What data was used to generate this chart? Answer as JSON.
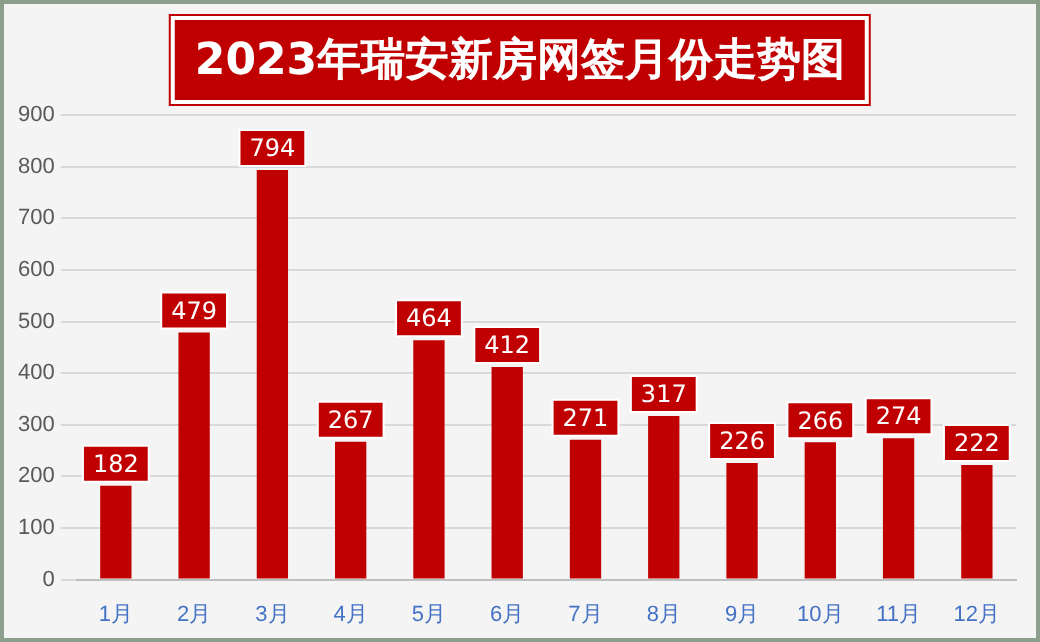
{
  "chart_data": {
    "type": "bar",
    "title": "2023年瑞安新房网签月份走势图",
    "categories": [
      "1月",
      "2月",
      "3月",
      "4月",
      "5月",
      "6月",
      "7月",
      "8月",
      "9月",
      "10月",
      "11月",
      "12月"
    ],
    "values": [
      182,
      479,
      794,
      267,
      464,
      412,
      271,
      317,
      226,
      266,
      274,
      222
    ],
    "color": "#c00000",
    "ylim": [
      0,
      900
    ],
    "yticks": [
      0,
      100,
      200,
      300,
      400,
      500,
      600,
      700,
      800,
      900
    ],
    "grid": "y",
    "data_labels": true
  }
}
